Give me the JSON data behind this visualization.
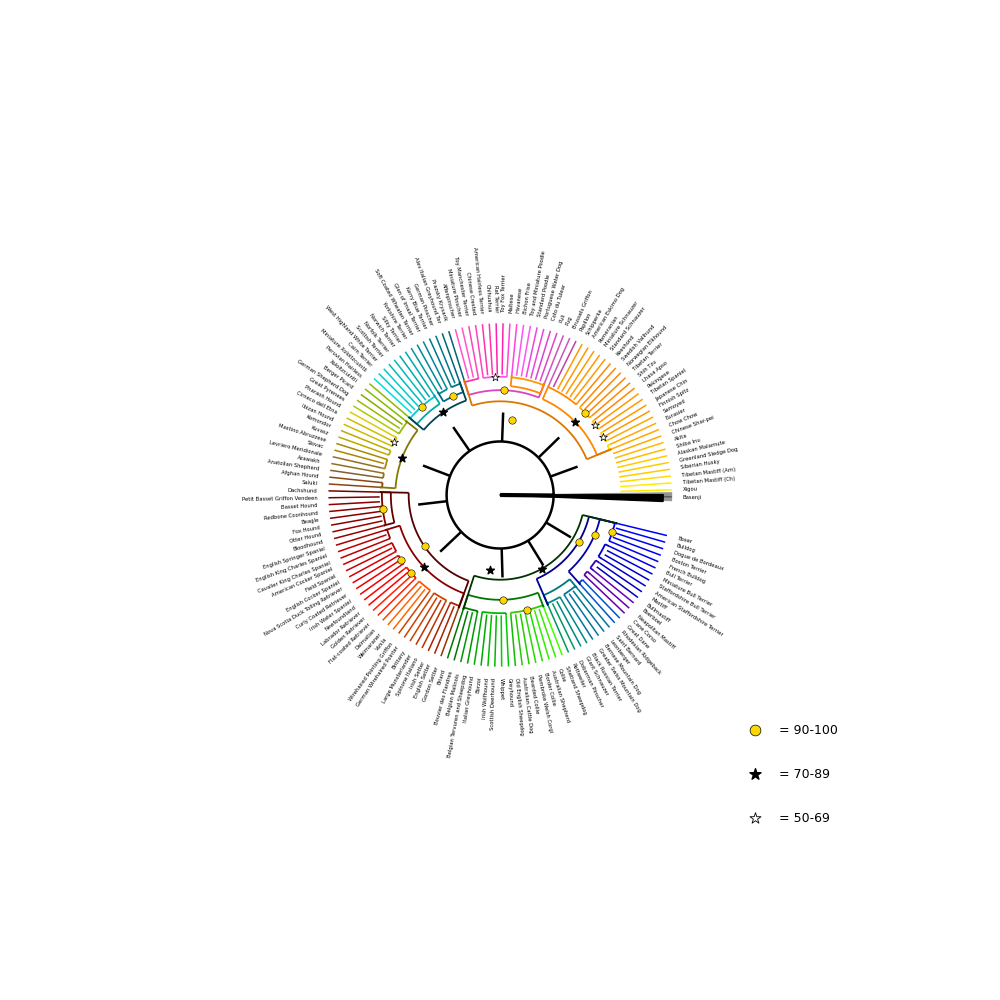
{
  "background_color": "#ffffff",
  "legend": {
    "circle_label": "= 90-100",
    "filled_star_label": "= 70-89",
    "open_star_label": "= 50-69"
  },
  "breeds_ordered": [
    "Boxer",
    "Bulldog",
    "Dogue de Bordeaux",
    "Boston Terrier",
    "French Bulldog",
    "Bull Terrier",
    "Miniature Bull Terrier",
    "Staffordshire Bull Terrier",
    "American Staffordshire Terrier",
    "Mastiff",
    "Bullmastiff",
    "Boerboel",
    "Neapolitan Mastiff",
    "Cane Corso",
    "Great Dane",
    "Rhodesian Ridgeback",
    "Saint Bernard",
    "Leonberger",
    "Bernese Mountain Dog",
    "Greater Swiss Mountain Dog",
    "Black Russian Terrier",
    "Giant Schnauzer",
    "Doberman Pinscher",
    "Rottweiler",
    "Shetland Sheepdog",
    "Collie",
    "Australian Shepherd",
    "Border Collie",
    "Pembroke Welsh Corgi",
    "Bearded Collie",
    "Australian Cattle Dog",
    "Old English Sheepdog",
    "Greyhound",
    "Whippet",
    "Scottish Deerhound",
    "Irish Wolfhound",
    "Borzoi",
    "Italian Greyhound",
    "Belgian Tervuren and Sheepdog",
    "Belgian Malinois",
    "Bouvier des Flandres",
    "Briard",
    "Gordon Setter",
    "English Setter",
    "Irish Setter",
    "Spinone Italiano",
    "Large Munsterlander",
    "Brittany",
    "German Wirehaired Pointer",
    "Wirehaired Pointing Griffon",
    "Vizsla",
    "Weimaraner",
    "Dalmatian",
    "Flat-coated Retriever",
    "Golden Retriever",
    "Labrador Retriever",
    "Newfoundland",
    "Irish Water Spaniel",
    "Curly Coated Retriever",
    "Nova Scotia Duck Tolling Retriever",
    "English Cocker Spaniel",
    "Field Spaniel",
    "American Cocker Spaniel",
    "Cavalier King Charles Spaniel",
    "English King Charles Spaniel",
    "English Springer Spaniel",
    "Bloodhound",
    "Otter Hound",
    "Fox Hound",
    "Beagle",
    "Redbone Coonhound",
    "Basset Hound",
    "Petit Basset Griffon Vendeen",
    "Dachshund",
    "Saluki",
    "Afghan Hound",
    "Anatolian Shepherd",
    "Azawakh",
    "Levriero Meridionale",
    "Slovac",
    "Mastino Abruzzese",
    "Kuvasz",
    "Komondor",
    "Ibizan Hound",
    "Cirneco dell Etna",
    "Pharaoh Hound",
    "Great Pyrenees",
    "German Shepherd Dog",
    "Berger Picard",
    "Xoloitzcuintli",
    "Peruvian Hairless",
    "Miniature Xoloitzcuintli",
    "Cairn Terrier",
    "West Highland White Terrier",
    "Scottish Terrier",
    "Norfolk Terrier",
    "Norwich Terrier",
    "Silky Terrier",
    "Yorkshire Terrier",
    "Soft Coated Wheaten Terrier",
    "Glen of Imaal Terrier",
    "Kerry Blue Terrier",
    "German Pinscher",
    "Alev Italian Greyhound Ter",
    "Prazsky Krysarik",
    "Affenpinscher",
    "Miniature Pinscher",
    "Toy Manchester Terrier",
    "Chinese Crested",
    "American Hairless Terrier",
    "Chihuahua",
    "Rat Terrier",
    "Toy Fox Terrier",
    "Maltese",
    "Havanese",
    "Bichon Frise",
    "Toy and Miniature Poodle",
    "Standard Poodle",
    "Portuguese Water Dog",
    "Coto du Tulear",
    "Puli",
    "Pug",
    "Brussels Griffon",
    "Papillon",
    "Schipperke",
    "American Eskimo Dog",
    "Pomeranian",
    "Miniature Schnauzer",
    "Standard Schnauzer",
    "Keeshond",
    "Swedish Vallhund",
    "Norwegian Elkhound",
    "Tibetan Terrier",
    "Shih Tzu",
    "Lhasa Apso",
    "Pekingese",
    "Tibetan Spaniel",
    "Japanese Chin",
    "Finnish Spitz",
    "Samoyed",
    "Eurasier",
    "Chow Chow",
    "Chinese Shar-pei",
    "Akita",
    "Shiba Inu",
    "Alaskan Malamute",
    "Greenland Sledge Dog",
    "Siberian Husky",
    "Tibetan Mastiff (Am)",
    "Tibetan Mastiff (Ch)",
    "Xigou",
    "Basenji"
  ],
  "breed_colors": {
    "Boxer": "#0000FF",
    "Bulldog": "#0000FF",
    "Dogue de Bordeaux": "#0000EE",
    "Boston Terrier": "#0000EE",
    "French Bulldog": "#0000EE",
    "Bull Terrier": "#0000DD",
    "Miniature Bull Terrier": "#0000DD",
    "Staffordshire Bull Terrier": "#0000CC",
    "American Staffordshire Terrier": "#0000CC",
    "Mastiff": "#0000BB",
    "Bullmastiff": "#0000BB",
    "Boerboel": "#6600BB",
    "Neapolitan Mastiff": "#6600AA",
    "Cane Corso": "#6600AA",
    "Great Dane": "#0055CC",
    "Rhodesian Ridgeback": "#0055CC",
    "Saint Bernard": "#007799",
    "Leonberger": "#007799",
    "Bernese Mountain Dog": "#007799",
    "Greater Swiss Mountain Dog": "#007799",
    "Black Russian Terrier": "#008888",
    "Giant Schnauzer": "#008888",
    "Doberman Pinscher": "#009966",
    "Rottweiler": "#009966",
    "Shetland Sheepdog": "#44FF00",
    "Collie": "#33EE00",
    "Australian Shepherd": "#33EE00",
    "Border Collie": "#22DD00",
    "Pembroke Welsh Corgi": "#22DD00",
    "Bearded Collie": "#22CC00",
    "Australian Cattle Dog": "#22CC00",
    "Old English Sheepdog": "#11BB00",
    "Greyhound": "#00CC00",
    "Whippet": "#00CC00",
    "Scottish Deerhound": "#00BB00",
    "Irish Wolfhound": "#00BB00",
    "Borzoi": "#00AA00",
    "Italian Greyhound": "#00AA00",
    "Belgian Tervuren and Sheepdog": "#009900",
    "Belgian Malinois": "#009900",
    "Bouvier des Flandres": "#007700",
    "Briard": "#007700",
    "Gordon Setter": "#993300",
    "English Setter": "#AA2200",
    "Irish Setter": "#AA2200",
    "Spinone Italiano": "#BB3300",
    "Large Munsterlander": "#BB3300",
    "Brittany": "#CC4400",
    "German Wirehaired Pointer": "#CC4400",
    "Wirehaired Pointing Griffon": "#CC4400",
    "Vizsla": "#FF6600",
    "Weimaraner": "#FF6600",
    "Dalmatian": "#FF4400",
    "Flat-coated Retriever": "#FF2200",
    "Golden Retriever": "#FF2200",
    "Labrador Retriever": "#FF0000",
    "Newfoundland": "#FF0000",
    "Irish Water Spaniel": "#EE0000",
    "Curly Coated Retriever": "#EE0000",
    "Nova Scotia Duck Tolling Retriever": "#DD0000",
    "English Cocker Spaniel": "#DD0000",
    "Field Spaniel": "#CC0000",
    "American Cocker Spaniel": "#CC0000",
    "Cavalier King Charles Spaniel": "#BB0000",
    "English King Charles Spaniel": "#BB0000",
    "English Springer Spaniel": "#AA0000",
    "Bloodhound": "#990000",
    "Otter Hound": "#990000",
    "Fox Hound": "#880000",
    "Beagle": "#880000",
    "Redbone Coonhound": "#880000",
    "Basset Hound": "#880000",
    "Petit Basset Griffon Vendeen": "#770000",
    "Dachshund": "#770000",
    "Saluki": "#8B4513",
    "Afghan Hound": "#8B4513",
    "Anatolian Shepherd": "#806030",
    "Azawakh": "#907020",
    "Levriero Meridionale": "#907020",
    "Slovac": "#AA8800",
    "Mastino Abruzzese": "#AA8800",
    "Kuvasz": "#BBAA00",
    "Komondor": "#BBAA00",
    "Ibizan Hound": "#CCBB00",
    "Cirneco dell Etna": "#CCBB00",
    "Pharaoh Hound": "#DDCC00",
    "Great Pyrenees": "#AACC00",
    "German Shepherd Dog": "#99BB00",
    "Berger Picard": "#88AA00",
    "Xoloitzcuintli": "#88BB00",
    "Peruvian Hairless": "#88BB00",
    "Miniature Xoloitzcuintli": "#00DDDD",
    "Cairn Terrier": "#00CCCC",
    "West Highland White Terrier": "#00CCCC",
    "Scottish Terrier": "#00BBBB",
    "Norfolk Terrier": "#00BBBB",
    "Norwich Terrier": "#00AAAA",
    "Silky Terrier": "#00AAAA",
    "Yorkshire Terrier": "#009999",
    "Soft Coated Wheaten Terrier": "#008899",
    "Glen of Imaal Terrier": "#008899",
    "Kerry Blue Terrier": "#007788",
    "German Pinscher": "#007788",
    "Alev Italian Greyhound Ter": "#006677",
    "Prazsky Krysarik": "#006677",
    "Affenpinscher": "#FF55CC",
    "Miniature Pinscher": "#FF55CC",
    "Toy Manchester Terrier": "#FF44BB",
    "Chinese Crested": "#FF44BB",
    "American Hairless Terrier": "#FF33AA",
    "Chihuahua": "#FF33AA",
    "Rat Terrier": "#FF22AA",
    "Toy Fox Terrier": "#FF22AA",
    "Maltese": "#FF44DD",
    "Havanese": "#FF44DD",
    "Bichon Frise": "#FF55EE",
    "Toy and Miniature Poodle": "#FF55EE",
    "Standard Poodle": "#EE44DD",
    "Portuguese Water Dog": "#EE44DD",
    "Coto du Tulear": "#DD44CC",
    "Puli": "#DD44CC",
    "Pug": "#CC55BB",
    "Brussels Griffon": "#CC55BB",
    "Papillon": "#BB44AA",
    "Schipperke": "#FF9900",
    "American Eskimo Dog": "#FF9900",
    "Pomeranian": "#FF9900",
    "Miniature Schnauzer": "#FF9900",
    "Standard Schnauzer": "#FF9900",
    "Keeshond": "#FF8800",
    "Swedish Vallhund": "#FF8800",
    "Norwegian Elkhound": "#FF8800",
    "Tibetan Terrier": "#FF8800",
    "Shih Tzu": "#FF8800",
    "Lhasa Apso": "#FF8800",
    "Pekingese": "#FF9900",
    "Tibetan Spaniel": "#FF9900",
    "Japanese Chin": "#FF9900",
    "Finnish Spitz": "#FF9900",
    "Samoyed": "#FFAA00",
    "Eurasier": "#FFAA00",
    "Chow Chow": "#FFAA00",
    "Chinese Shar-pei": "#FFAA00",
    "Akita": "#FFBB00",
    "Shiba Inu": "#FFBB00",
    "Alaskan Malamute": "#FFCC00",
    "Greenland Sledge Dog": "#FFCC00",
    "Siberian Husky": "#FFCC00",
    "Tibetan Mastiff (Am)": "#FFDD00",
    "Tibetan Mastiff (Ch)": "#FFEE00",
    "Xigou": "#FFEE00",
    "Basenji": "#999999"
  },
  "clades": [
    [
      0,
      4,
      "#0000EE",
      0.265
    ],
    [
      5,
      8,
      "#0000CC",
      0.26
    ],
    [
      9,
      11,
      "#3300BB",
      0.26
    ],
    [
      12,
      13,
      "#6600AA",
      0.26
    ],
    [
      14,
      15,
      "#0044CC",
      0.265
    ],
    [
      0,
      15,
      "#0000AA",
      0.23
    ],
    [
      16,
      19,
      "#007799",
      0.265
    ],
    [
      20,
      23,
      "#008888",
      0.265
    ],
    [
      16,
      23,
      "#007777",
      0.245
    ],
    [
      0,
      23,
      "#000088",
      0.205
    ],
    [
      24,
      31,
      "#33CC00",
      0.265
    ],
    [
      32,
      37,
      "#00BB00",
      0.265
    ],
    [
      38,
      41,
      "#007700",
      0.265
    ],
    [
      24,
      41,
      "#007700",
      0.235
    ],
    [
      0,
      41,
      "#003300",
      0.19
    ],
    [
      42,
      44,
      "#AA2200",
      0.265
    ],
    [
      45,
      48,
      "#CC4400",
      0.265
    ],
    [
      49,
      52,
      "#FF5500",
      0.265
    ],
    [
      53,
      56,
      "#FF1100",
      0.265
    ],
    [
      57,
      59,
      "#DD0000",
      0.265
    ],
    [
      60,
      62,
      "#BB0000",
      0.265
    ],
    [
      63,
      65,
      "#990000",
      0.265
    ],
    [
      42,
      65,
      "#880000",
      0.235
    ],
    [
      66,
      69,
      "#880000",
      0.265
    ],
    [
      70,
      73,
      "#770000",
      0.265
    ],
    [
      66,
      73,
      "#660000",
      0.245
    ],
    [
      42,
      73,
      "#550000",
      0.205
    ],
    [
      74,
      75,
      "#8B4513",
      0.265
    ],
    [
      76,
      77,
      "#907020",
      0.265
    ],
    [
      78,
      80,
      "#AA8800",
      0.265
    ],
    [
      81,
      82,
      "#BBAA00",
      0.265
    ],
    [
      83,
      85,
      "#CCBB00",
      0.265
    ],
    [
      86,
      89,
      "#99BB00",
      0.265
    ],
    [
      74,
      89,
      "#887700",
      0.235
    ],
    [
      90,
      97,
      "#00CCCC",
      0.265
    ],
    [
      90,
      97,
      "#00AAAA",
      0.245
    ],
    [
      98,
      100,
      "#008899",
      0.265
    ],
    [
      101,
      103,
      "#007788",
      0.265
    ],
    [
      98,
      103,
      "#006688",
      0.245
    ],
    [
      90,
      103,
      "#004455",
      0.225
    ],
    [
      104,
      107,
      "#FF33AA",
      0.265
    ],
    [
      108,
      113,
      "#FF55EE",
      0.265
    ],
    [
      114,
      121,
      "#FF9900",
      0.265
    ],
    [
      104,
      121,
      "#DD44BB",
      0.235
    ],
    [
      114,
      121,
      "#FF8800",
      0.245
    ],
    [
      122,
      129,
      "#FF8800",
      0.265
    ],
    [
      130,
      133,
      "#FFAA00",
      0.265
    ],
    [
      134,
      136,
      "#FFBB00",
      0.265
    ],
    [
      137,
      139,
      "#FFCC00",
      0.265
    ],
    [
      140,
      141,
      "#FFDD00",
      0.265
    ],
    [
      122,
      141,
      "#FF8800",
      0.235
    ],
    [
      104,
      141,
      "#DD7700",
      0.21
    ],
    [
      142,
      142,
      "#999999",
      0.265
    ]
  ]
}
